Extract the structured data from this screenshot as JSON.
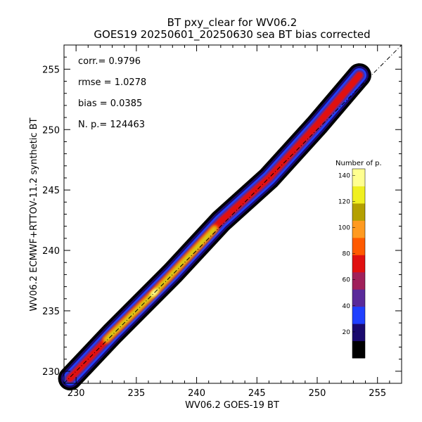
{
  "chart_data": {
    "type": "heatmap",
    "title": "BT pxy_clear for WV06.2",
    "subtitle": "GOES19 20250601_20250630 sea BT bias corrected",
    "xlabel": "WV06.2 GOES-19 BT",
    "ylabel": "WV06.2 ECMWF+RTTOV-11.2 synthetic BT",
    "xlim": [
      229,
      257
    ],
    "ylim": [
      229,
      257
    ],
    "x_ticks": [
      "230",
      "235",
      "240",
      "245",
      "250",
      "255"
    ],
    "y_ticks": [
      "230",
      "235",
      "240",
      "245",
      "250",
      "255"
    ],
    "stats": [
      "corr.= 0.9796",
      "rmse = 1.0278",
      "bias = 0.0385",
      "N. p.=  124463"
    ],
    "identity_line": true,
    "density": {
      "ridge": [
        [
          229.5,
          229.4
        ],
        [
          233,
          233.1
        ],
        [
          238,
          238.1
        ],
        [
          242,
          242.4
        ],
        [
          246,
          246.0
        ],
        [
          250,
          250.4
        ],
        [
          253.5,
          254.5
        ]
      ],
      "peak_count": 140,
      "peak_location": [
        236.5,
        236.5
      ]
    },
    "colorbar": {
      "title": "Number of p.",
      "range": [
        0,
        145
      ],
      "ticks": [
        "20",
        "40",
        "60",
        "80",
        "100",
        "120",
        "140"
      ],
      "colors": [
        "#000000",
        "#1a0a6e",
        "#2040ff",
        "#5a2a9a",
        "#a0205a",
        "#e01010",
        "#ff5a00",
        "#ff9a20",
        "#b4a000",
        "#f0f020",
        "#ffff90"
      ]
    }
  }
}
